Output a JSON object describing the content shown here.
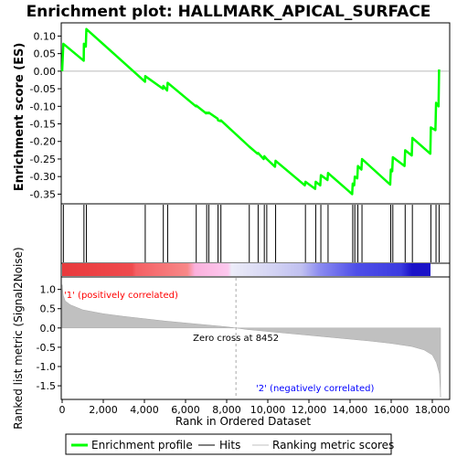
{
  "chart_data": {
    "type": "line",
    "title": "Enrichment plot: HALLMARK_APICAL_SURFACE",
    "xlabel": "Rank in Ordered Dataset",
    "xlim": [
      0,
      18800
    ],
    "x_ticks": [
      "0",
      "2,000",
      "4,000",
      "6,000",
      "8,000",
      "10,000",
      "12,000",
      "14,000",
      "16,000",
      "18,000"
    ],
    "x_tick_values": [
      0,
      2000,
      4000,
      6000,
      8000,
      10000,
      12000,
      14000,
      16000,
      18000
    ],
    "panels": {
      "enrichment": {
        "ylabel": "Enrichment score (ES)",
        "ylim": [
          -0.375,
          0.135
        ],
        "y_ticks": [
          "0.10",
          "0.05",
          "0.00",
          "-0.05",
          "-0.10",
          "-0.15",
          "-0.20",
          "-0.25",
          "-0.30",
          "-0.35"
        ],
        "y_tick_values": [
          0.1,
          0.05,
          0.0,
          -0.05,
          -0.1,
          -0.15,
          -0.2,
          -0.25,
          -0.3,
          -0.35
        ],
        "series": [
          {
            "name": "Enrichment profile",
            "color": "#00ff00",
            "points": [
              [
                0,
                0.0
              ],
              [
                60,
                0.078
              ],
              [
                1050,
                0.03
              ],
              [
                1060,
                0.078
              ],
              [
                1150,
                0.07
              ],
              [
                1180,
                0.12
              ],
              [
                4030,
                -0.03
              ],
              [
                4040,
                -0.014
              ],
              [
                4900,
                -0.05
              ],
              [
                4920,
                -0.042
              ],
              [
                5100,
                -0.055
              ],
              [
                5130,
                -0.033
              ],
              [
                6500,
                -0.1
              ],
              [
                6520,
                -0.098
              ],
              [
                7000,
                -0.12
              ],
              [
                7030,
                -0.118
              ],
              [
                7100,
                -0.12
              ],
              [
                7130,
                -0.118
              ],
              [
                7560,
                -0.135
              ],
              [
                7580,
                -0.14
              ],
              [
                7700,
                -0.142
              ],
              [
                7720,
                -0.14
              ],
              [
                9100,
                -0.215
              ],
              [
                9500,
                -0.235
              ],
              [
                9530,
                -0.233
              ],
              [
                9800,
                -0.25
              ],
              [
                9830,
                -0.242
              ],
              [
                9950,
                -0.25
              ],
              [
                10350,
                -0.272
              ],
              [
                10380,
                -0.255
              ],
              [
                11800,
                -0.325
              ],
              [
                11830,
                -0.315
              ],
              [
                12300,
                -0.335
              ],
              [
                12330,
                -0.315
              ],
              [
                12550,
                -0.325
              ],
              [
                12580,
                -0.296
              ],
              [
                12900,
                -0.31
              ],
              [
                12930,
                -0.29
              ],
              [
                14100,
                -0.35
              ],
              [
                14130,
                -0.32
              ],
              [
                14200,
                -0.325
              ],
              [
                14230,
                -0.3
              ],
              [
                14350,
                -0.305
              ],
              [
                14380,
                -0.27
              ],
              [
                14550,
                -0.28
              ],
              [
                14580,
                -0.25
              ],
              [
                15950,
                -0.323
              ],
              [
                15980,
                -0.28
              ],
              [
                16050,
                -0.285
              ],
              [
                16080,
                -0.245
              ],
              [
                16650,
                -0.27
              ],
              [
                16680,
                -0.225
              ],
              [
                17000,
                -0.24
              ],
              [
                17030,
                -0.19
              ],
              [
                17900,
                -0.235
              ],
              [
                17930,
                -0.16
              ],
              [
                18150,
                -0.168
              ],
              [
                18180,
                -0.09
              ],
              [
                18300,
                -0.1
              ],
              [
                18330,
                0.005
              ]
            ]
          }
        ]
      },
      "hits": {
        "name": "Hits",
        "ranks": [
          60,
          1060,
          1180,
          4040,
          4920,
          5130,
          6520,
          7030,
          7130,
          7580,
          7720,
          9100,
          9530,
          9830,
          9950,
          10380,
          11830,
          12330,
          12580,
          12930,
          14130,
          14230,
          14380,
          14580,
          15980,
          16080,
          16680,
          17030,
          17930,
          18180,
          18330
        ]
      },
      "ranked_list": {
        "name": "Ranking metric scores",
        "ylabel": "Ranked list metric (Signal2Noise)",
        "ylim": [
          -1.83,
          1.3
        ],
        "y_ticks": [
          "1.0",
          "0.5",
          "0.0",
          "-0.5",
          "-1.0",
          "-1.5"
        ],
        "y_tick_values": [
          1.0,
          0.5,
          0.0,
          -0.5,
          -1.0,
          -1.5
        ],
        "profile": [
          [
            0,
            1.12
          ],
          [
            50,
            0.85
          ],
          [
            150,
            0.7
          ],
          [
            400,
            0.6
          ],
          [
            1000,
            0.47
          ],
          [
            2000,
            0.37
          ],
          [
            3000,
            0.3
          ],
          [
            4000,
            0.24
          ],
          [
            5000,
            0.18
          ],
          [
            6000,
            0.13
          ],
          [
            7000,
            0.08
          ],
          [
            8000,
            0.03
          ],
          [
            8452,
            0.0
          ],
          [
            9000,
            -0.04
          ],
          [
            10000,
            -0.09
          ],
          [
            11000,
            -0.14
          ],
          [
            12000,
            -0.19
          ],
          [
            13000,
            -0.24
          ],
          [
            14000,
            -0.29
          ],
          [
            15000,
            -0.34
          ],
          [
            16000,
            -0.4
          ],
          [
            17000,
            -0.48
          ],
          [
            17600,
            -0.57
          ],
          [
            18000,
            -0.7
          ],
          [
            18200,
            -0.9
          ],
          [
            18350,
            -1.2
          ],
          [
            18400,
            -1.8
          ]
        ],
        "zero_cross_label": "Zero cross at 8452",
        "zero_cross": 8452,
        "positive_label": "'1' (positively correlated)",
        "negative_label": "'2' (negatively correlated)"
      }
    },
    "legend": {
      "position": "bottom",
      "entries": [
        {
          "label": "Enrichment profile",
          "color": "#00ff00"
        },
        {
          "label": "Hits",
          "color": "#000000"
        },
        {
          "label": "Ranking metric scores",
          "color": "#c0c0c0"
        }
      ]
    }
  }
}
